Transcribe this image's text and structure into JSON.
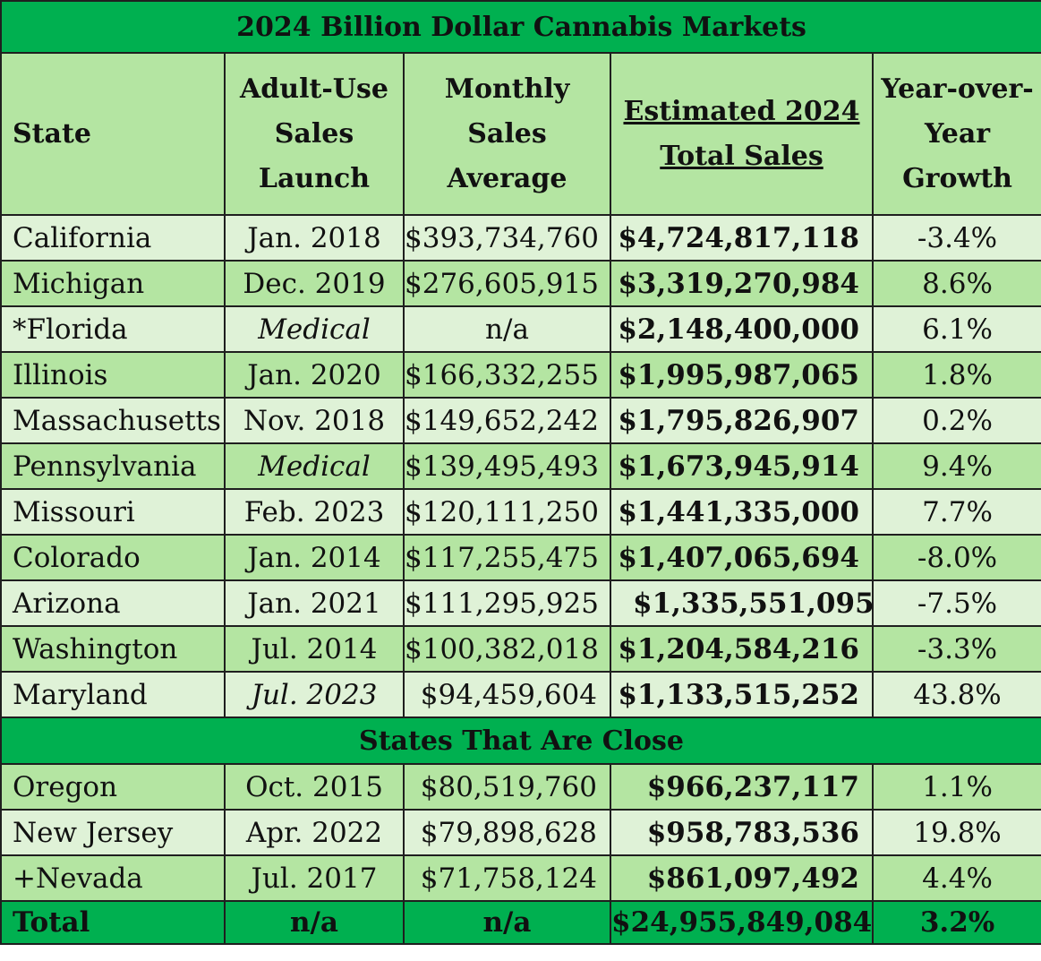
{
  "title": "2024 Billion Dollar Cannabis Markets",
  "headers": {
    "state": "State",
    "launch": "Adult-Use Sales Launch",
    "avg": "Monthly Sales Average",
    "total": "Estimated 2024 Total Sales",
    "yoy": "Year-over-Year Growth"
  },
  "rows": [
    {
      "state": "California",
      "launch": "Jan. 2018",
      "avg": "$393,734,760",
      "total": "$4,724,817,118",
      "yoy": "-3.4%"
    },
    {
      "state": "Michigan",
      "launch": "Dec. 2019",
      "avg": "$276,605,915",
      "total": "$3,319,270,984",
      "yoy": "8.6%"
    },
    {
      "state": "*Florida",
      "launch": "Medical",
      "avg": "n/a",
      "total": "$2,148,400,000",
      "yoy": "6.1%"
    },
    {
      "state": "Illinois",
      "launch": "Jan. 2020",
      "avg": "$166,332,255",
      "total": "$1,995,987,065",
      "yoy": "1.8%"
    },
    {
      "state": "Massachusetts",
      "launch": "Nov. 2018",
      "avg": "$149,652,242",
      "total": "$1,795,826,907",
      "yoy": "0.2%"
    },
    {
      "state": "Pennsylvania",
      "launch": "Medical",
      "avg": "$139,495,493",
      "total": "$1,673,945,914",
      "yoy": "9.4%"
    },
    {
      "state": "Missouri",
      "launch": "Feb. 2023",
      "avg": "$120,111,250",
      "total": "$1,441,335,000",
      "yoy": "7.7%"
    },
    {
      "state": "Colorado",
      "launch": "Jan. 2014",
      "avg": "$117,255,475",
      "total": "$1,407,065,694",
      "yoy": "-8.0%"
    },
    {
      "state": "Arizona",
      "launch": "Jan. 2021",
      "avg": "$111,295,925",
      "total": "$1,335,551,095",
      "yoy": "-7.5%"
    },
    {
      "state": "Washington",
      "launch": "Jul. 2014",
      "avg": "$100,382,018",
      "total": "$1,204,584,216",
      "yoy": "-3.3%"
    },
    {
      "state": "Maryland",
      "launch": "Jul. 2023",
      "avg": "$94,459,604",
      "total": "$1,133,515,252",
      "yoy": "43.8%"
    }
  ],
  "section_title": "States That Are Close",
  "close_rows": [
    {
      "state": "Oregon",
      "launch": "Oct. 2015",
      "avg": "$80,519,760",
      "total": "$966,237,117",
      "yoy": "1.1%"
    },
    {
      "state": "New Jersey",
      "launch": "Apr. 2022",
      "avg": "$79,898,628",
      "total": "$958,783,536",
      "yoy": "19.8%"
    },
    {
      "state": "+Nevada",
      "launch": "Jul. 2017",
      "avg": "$71,758,124",
      "total": "$861,097,492",
      "yoy": "4.4%"
    }
  ],
  "total_row": {
    "state": "Total",
    "launch": "n/a",
    "avg": "n/a",
    "total": "$24,955,849,084",
    "yoy": "3.2%"
  },
  "colors": {
    "title_bg": "#00b050",
    "row_light": "#dff2d7",
    "row_mid": "#b4e5a2"
  }
}
